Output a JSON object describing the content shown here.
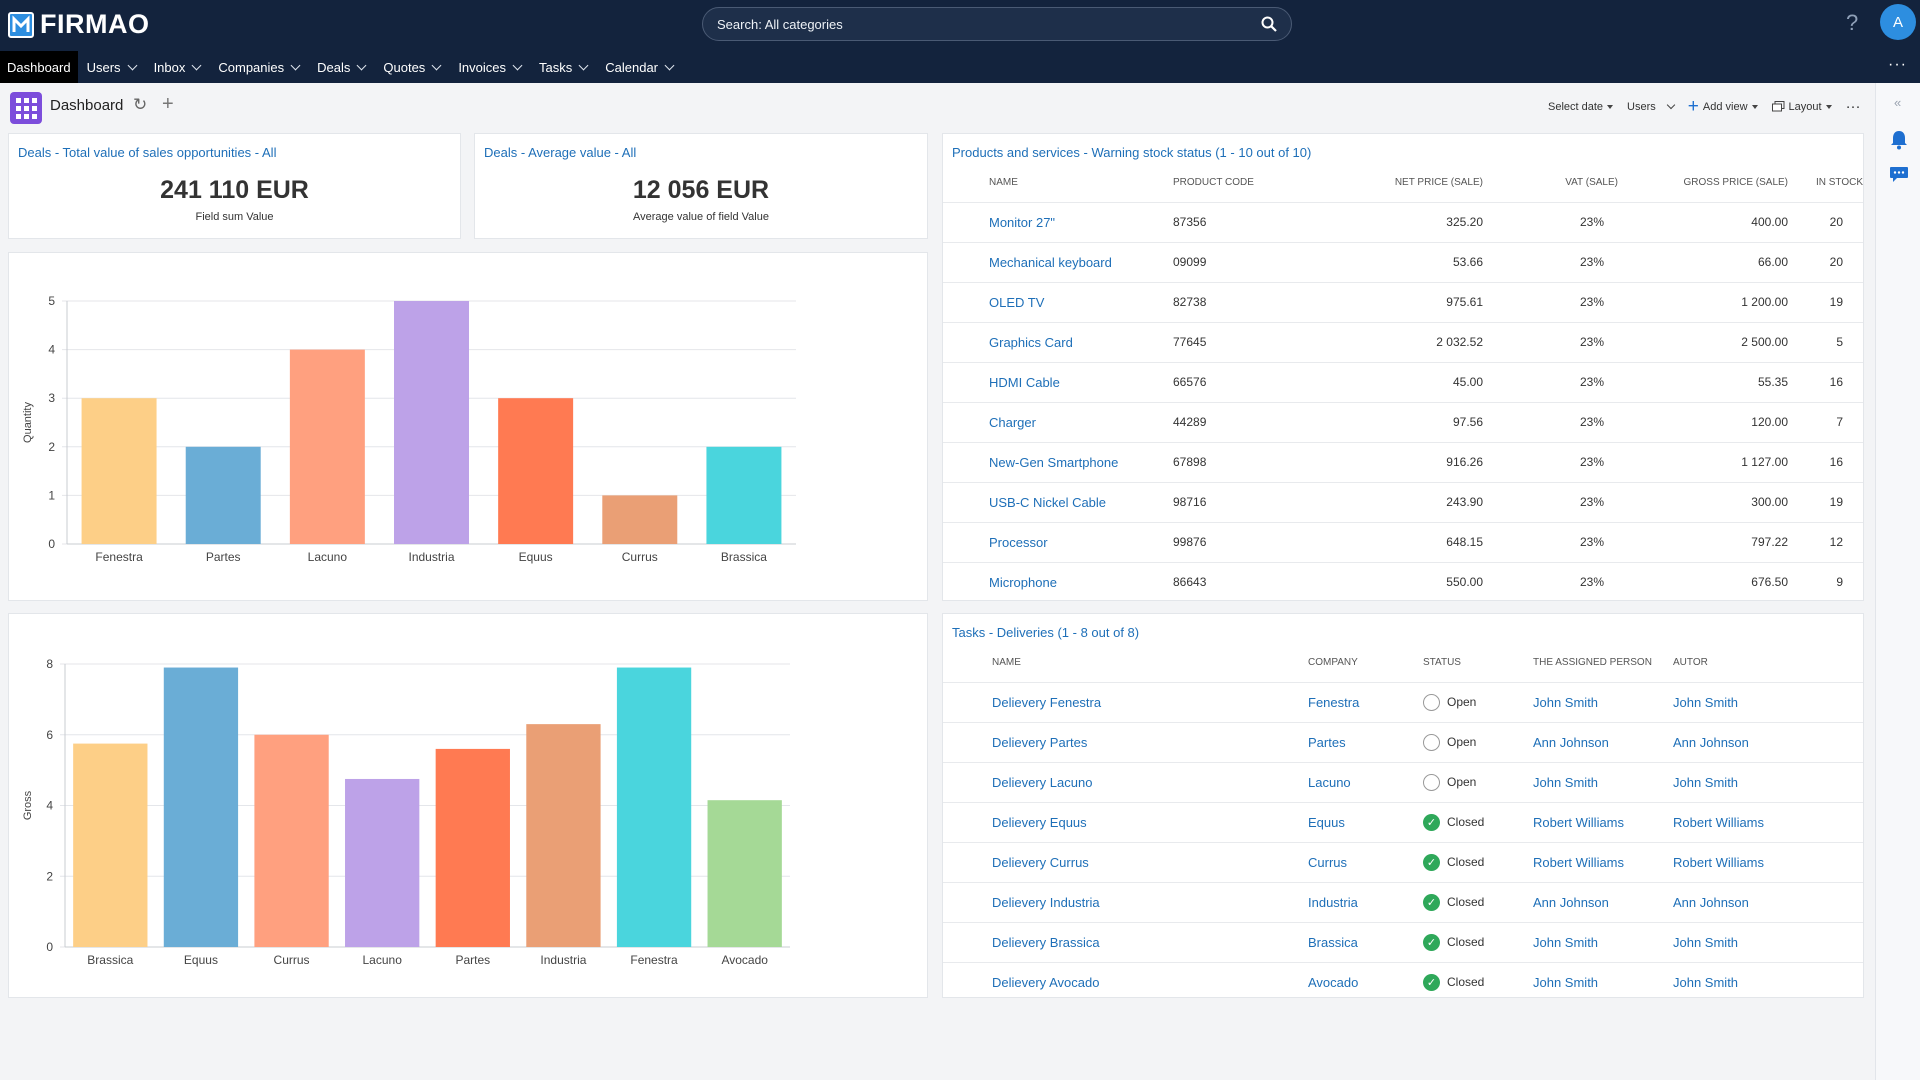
{
  "app": {
    "logo_text": "FIRMAO",
    "search_text": "Search: All categories",
    "help": "?",
    "user_initial": "A"
  },
  "nav": {
    "items": [
      {
        "label": "Dashboard",
        "active": true,
        "dropdown": false
      },
      {
        "label": "Users",
        "dropdown": true
      },
      {
        "label": "Inbox",
        "dropdown": true
      },
      {
        "label": "Companies",
        "dropdown": true
      },
      {
        "label": "Deals",
        "dropdown": true
      },
      {
        "label": "Quotes",
        "dropdown": true
      },
      {
        "label": "Invoices",
        "dropdown": true
      },
      {
        "label": "Tasks",
        "dropdown": true
      },
      {
        "label": "Calendar",
        "dropdown": true
      }
    ],
    "more": "···"
  },
  "toolbar": {
    "title": "Dashboard",
    "refresh_icon": "↻",
    "plus_icon": "+",
    "select_date": "Select date",
    "users": "Users",
    "add_view": "Add view",
    "layout": "Layout",
    "more": "···"
  },
  "rail": {
    "collapse": "«"
  },
  "kpi1": {
    "title": "Deals - Total value of sales opportunities - All",
    "value": "241 110 EUR",
    "sub": "Field sum Value"
  },
  "kpi2": {
    "title": "Deals - Average value - All",
    "value": "12 056 EUR",
    "sub": "Average value of field Value"
  },
  "chart_data": [
    {
      "type": "bar",
      "title": "",
      "xlabel": "",
      "ylabel": "Quantity",
      "ylim": [
        0,
        5
      ],
      "yticks": [
        0,
        1,
        2,
        3,
        4,
        5
      ],
      "categories": [
        "Fenestra",
        "Partes",
        "Lacuno",
        "Industria",
        "Equus",
        "Currus",
        "Brassica"
      ],
      "values": [
        3,
        2,
        4,
        5,
        3,
        1,
        2
      ],
      "colors": [
        "#fdcf87",
        "#6aadd6",
        "#ffa07f",
        "#bda2e8",
        "#ff7a52",
        "#ea9f75",
        "#4ad5dd"
      ]
    },
    {
      "type": "bar",
      "title": "",
      "xlabel": "",
      "ylabel": "Gross",
      "ylim": [
        0,
        8
      ],
      "yticks": [
        0,
        2,
        4,
        6,
        8
      ],
      "categories": [
        "Brassica",
        "Equus",
        "Currus",
        "Lacuno",
        "Partes",
        "Industria",
        "Fenestra",
        "Avocado"
      ],
      "values": [
        5.75,
        7.9,
        6.0,
        4.75,
        5.6,
        6.3,
        7.9,
        4.15
      ],
      "colors": [
        "#fdcf87",
        "#6aadd6",
        "#ffa07f",
        "#bda2e8",
        "#ff7a52",
        "#ea9f75",
        "#4ad5dd",
        "#a5d996"
      ]
    }
  ],
  "products": {
    "title": "Products and services - Warning stock status (1 - 10 out of 10)",
    "headers": [
      "NAME",
      "PRODUCT CODE",
      "NET PRICE (SALE)",
      "VAT (SALE)",
      "GROSS PRICE (SALE)",
      "IN STOCK"
    ],
    "rows": [
      {
        "name": "Monitor 27\"",
        "code": "87356",
        "net": "325.20",
        "vat": "23%",
        "gross": "400.00",
        "stock": "20"
      },
      {
        "name": "Mechanical keyboard",
        "code": "09099",
        "net": "53.66",
        "vat": "23%",
        "gross": "66.00",
        "stock": "20"
      },
      {
        "name": "OLED TV",
        "code": "82738",
        "net": "975.61",
        "vat": "23%",
        "gross": "1 200.00",
        "stock": "19"
      },
      {
        "name": "Graphics Card",
        "code": "77645",
        "net": "2 032.52",
        "vat": "23%",
        "gross": "2 500.00",
        "stock": "5"
      },
      {
        "name": "HDMI Cable",
        "code": "66576",
        "net": "45.00",
        "vat": "23%",
        "gross": "55.35",
        "stock": "16"
      },
      {
        "name": "Charger",
        "code": "44289",
        "net": "97.56",
        "vat": "23%",
        "gross": "120.00",
        "stock": "7"
      },
      {
        "name": "New-Gen Smartphone",
        "code": "67898",
        "net": "916.26",
        "vat": "23%",
        "gross": "1 127.00",
        "stock": "16"
      },
      {
        "name": "USB-C Nickel Cable",
        "code": "98716",
        "net": "243.90",
        "vat": "23%",
        "gross": "300.00",
        "stock": "19"
      },
      {
        "name": "Processor",
        "code": "99876",
        "net": "648.15",
        "vat": "23%",
        "gross": "797.22",
        "stock": "12"
      },
      {
        "name": "Microphone",
        "code": "86643",
        "net": "550.00",
        "vat": "23%",
        "gross": "676.50",
        "stock": "9"
      }
    ]
  },
  "tasks": {
    "title": "Tasks - Deliveries (1 - 8 out of 8)",
    "headers": [
      "NAME",
      "COMPANY",
      "STATUS",
      "THE ASSIGNED PERSON",
      "AUTOR"
    ],
    "rows": [
      {
        "name": "Delievery Fenestra",
        "company": "Fenestra",
        "status": "Open",
        "closed": false,
        "assigned": "John Smith",
        "autor": "John Smith"
      },
      {
        "name": "Delievery Partes",
        "company": "Partes",
        "status": "Open",
        "closed": false,
        "assigned": "Ann Johnson",
        "autor": "Ann Johnson"
      },
      {
        "name": "Delievery Lacuno",
        "company": "Lacuno",
        "status": "Open",
        "closed": false,
        "assigned": "John Smith",
        "autor": "John Smith"
      },
      {
        "name": "Delievery Equus",
        "company": "Equus",
        "status": "Closed",
        "closed": true,
        "assigned": "Robert Williams",
        "autor": "Robert Williams"
      },
      {
        "name": "Delievery Currus",
        "company": "Currus",
        "status": "Closed",
        "closed": true,
        "assigned": "Robert Williams",
        "autor": "Robert Williams"
      },
      {
        "name": "Delievery Industria",
        "company": "Industria",
        "status": "Closed",
        "closed": true,
        "assigned": "Ann Johnson",
        "autor": "Ann Johnson"
      },
      {
        "name": "Delievery Brassica",
        "company": "Brassica",
        "status": "Closed",
        "closed": true,
        "assigned": "John Smith",
        "autor": "John Smith"
      },
      {
        "name": "Delievery Avocado",
        "company": "Avocado",
        "status": "Closed",
        "closed": true,
        "assigned": "John Smith",
        "autor": "John Smith"
      }
    ]
  }
}
